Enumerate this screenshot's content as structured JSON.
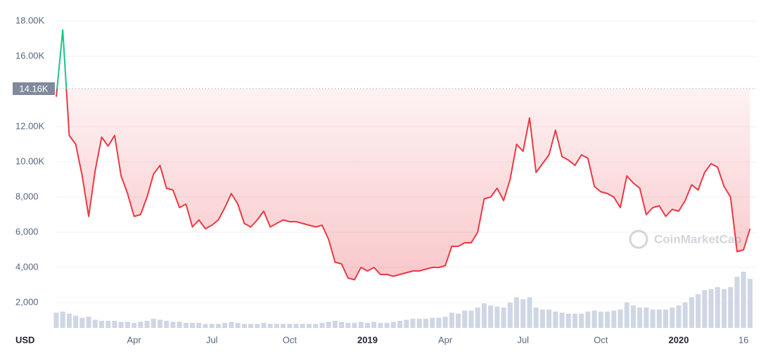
{
  "chart_data": {
    "type": "line",
    "y_axis_label": "USD",
    "watermark": "CoinMarketCap",
    "categories": [
      null,
      null,
      null,
      null,
      null,
      null,
      null,
      null,
      null,
      null,
      null,
      null,
      "Apr",
      null,
      null,
      null,
      null,
      null,
      null,
      null,
      null,
      null,
      null,
      null,
      "Jul",
      null,
      null,
      null,
      null,
      null,
      null,
      null,
      null,
      null,
      null,
      null,
      "Oct",
      null,
      null,
      null,
      null,
      null,
      null,
      null,
      null,
      null,
      null,
      null,
      "2019",
      null,
      null,
      null,
      null,
      null,
      null,
      null,
      null,
      null,
      null,
      null,
      "Apr",
      null,
      null,
      null,
      null,
      null,
      null,
      null,
      null,
      null,
      null,
      null,
      "Jul",
      null,
      null,
      null,
      null,
      null,
      null,
      null,
      null,
      null,
      null,
      null,
      "Oct",
      null,
      null,
      null,
      null,
      null,
      null,
      null,
      null,
      null,
      null,
      null,
      "2020",
      null,
      null,
      null,
      null,
      null,
      null,
      null,
      null,
      null,
      "16",
      null
    ],
    "bold_categories": [
      "2019",
      "2020"
    ],
    "values": [
      13700,
      17500,
      11500,
      11000,
      9200,
      6900,
      9500,
      11400,
      10900,
      11500,
      9200,
      8200,
      6900,
      7000,
      8000,
      9300,
      9800,
      8500,
      8400,
      7400,
      7600,
      6300,
      6700,
      6200,
      6400,
      6700,
      7400,
      8200,
      7600,
      6500,
      6300,
      6700,
      7200,
      6300,
      6500,
      6700,
      6600,
      6600,
      6500,
      6400,
      6300,
      6400,
      5600,
      4300,
      4200,
      3400,
      3300,
      4000,
      3800,
      4000,
      3600,
      3600,
      3500,
      3600,
      3700,
      3800,
      3800,
      3900,
      4000,
      4000,
      4100,
      5200,
      5200,
      5400,
      5400,
      6000,
      7900,
      8000,
      8500,
      7800,
      9000,
      11000,
      10600,
      12500,
      9400,
      9900,
      10400,
      11800,
      10300,
      10100,
      9800,
      10400,
      10200,
      8600,
      8300,
      8200,
      8000,
      7400,
      9200,
      8800,
      8500,
      7000,
      7400,
      7500,
      6900,
      7300,
      7200,
      7800,
      8700,
      8400,
      9400,
      9900,
      9700,
      8600,
      8000,
      4900,
      5000,
      6200
    ],
    "color": "#ea3943",
    "above_color": "#16c784",
    "reference": {
      "value": 14160,
      "label": "14.16K"
    },
    "ylim": [
      0,
      18000
    ],
    "yticks": [
      {
        "value": 2000,
        "label": "2,000"
      },
      {
        "value": 4000,
        "label": "4,000"
      },
      {
        "value": 6000,
        "label": "6,000"
      },
      {
        "value": 8000,
        "label": "8,000"
      },
      {
        "value": 10000,
        "label": "10.00K"
      },
      {
        "value": 12000,
        "label": "12.00K"
      },
      {
        "value": 16000,
        "label": "16.00K"
      },
      {
        "value": 18000,
        "label": "18.00K"
      }
    ],
    "grid": true,
    "volume": {
      "color": "#cfd6e4",
      "y2lim": [
        0,
        300
      ],
      "values": [
        15,
        16,
        14,
        12,
        10,
        11,
        8,
        7,
        7,
        7,
        6,
        6,
        5,
        6,
        7,
        9,
        8,
        7,
        6,
        6,
        5,
        5,
        5,
        4,
        4,
        4,
        5,
        6,
        5,
        4,
        4,
        4,
        5,
        4,
        4,
        4,
        4,
        4,
        4,
        4,
        4,
        5,
        6,
        7,
        6,
        5,
        5,
        6,
        5,
        6,
        5,
        5,
        6,
        7,
        8,
        9,
        9,
        9,
        10,
        10,
        11,
        15,
        14,
        17,
        17,
        20,
        24,
        22,
        21,
        20,
        25,
        30,
        28,
        30,
        20,
        18,
        18,
        16,
        15,
        14,
        14,
        14,
        16,
        17,
        16,
        16,
        17,
        18,
        25,
        22,
        20,
        20,
        18,
        18,
        18,
        20,
        22,
        25,
        30,
        33,
        37,
        38,
        40,
        38,
        40,
        50,
        55,
        48
      ]
    }
  }
}
